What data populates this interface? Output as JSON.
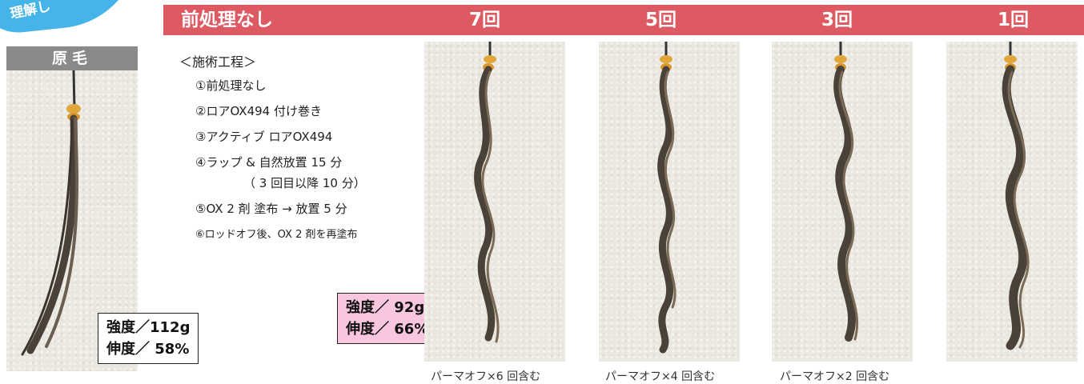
{
  "corner_badge": {
    "text": "理解し"
  },
  "header": {
    "title": "前処理なし",
    "columns": [
      "7回",
      "5回",
      "3回",
      "1回"
    ]
  },
  "original": {
    "label": "原毛",
    "strength": "強度／112g",
    "elongation": "伸度／ 58%"
  },
  "procedure": {
    "title": "＜施術工程＞",
    "steps": [
      "①前処理なし",
      "②ロアOX494 付け巻き",
      "③アクティブ ロアOX494",
      "④ラップ & 自然放置 15 分",
      "（ 3 回目以降 10 分）",
      "⑤OX 2 剤 塗布 → 放置 5 分",
      "⑥ロッドオフ後、OX 2 剤を再塗布"
    ]
  },
  "treated": {
    "strength": "強度／ 92g",
    "elongation": "伸度／ 66%"
  },
  "captions": [
    "パーマオフ×6 回含む",
    "パーマオフ×4 回含む",
    "パーマオフ×2 回含む"
  ],
  "colors": {
    "header_bar": "#de5a62",
    "corner_badge": "#45b4e8",
    "original_label": "#8a8a8a",
    "treated_box": "#f9c6df",
    "hair": "#4a4238"
  }
}
